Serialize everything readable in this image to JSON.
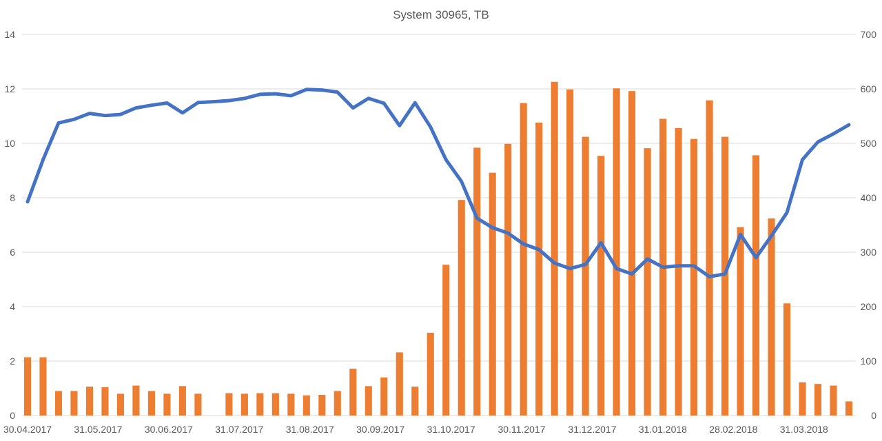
{
  "chart_data": {
    "type": "bar",
    "title": "System 30965, TB",
    "xlabel": "",
    "ylabel": "",
    "x_tick_labels": [
      "30.04.2017",
      "31.05.2017",
      "30.06.2017",
      "31.07.2017",
      "31.08.2017",
      "30.09.2017",
      "31.10.2017",
      "30.11.2017",
      "31.12.2017",
      "31.01.2018",
      "28.02.2018",
      "31.03.2018"
    ],
    "y_left": {
      "lim": [
        0,
        14
      ],
      "ticks": [
        0,
        2,
        4,
        6,
        8,
        10,
        12,
        14
      ]
    },
    "y_right": {
      "lim": [
        0,
        700
      ],
      "ticks": [
        0,
        100,
        200,
        300,
        400,
        500,
        600,
        700
      ]
    },
    "grid": true,
    "legend": "none",
    "series": [
      {
        "type": "bar",
        "axis": "right",
        "color": "#ED7D31",
        "values": [
          107,
          107,
          45,
          45,
          53,
          52,
          40,
          55,
          45,
          40,
          54,
          40,
          0,
          41,
          40,
          41,
          41,
          40,
          37,
          38,
          45,
          86,
          54,
          70,
          116,
          53,
          152,
          277,
          396,
          492,
          446,
          499,
          574,
          538,
          613,
          599,
          512,
          477,
          601,
          596,
          491,
          545,
          528,
          508,
          579,
          512,
          346,
          478,
          362,
          206,
          61,
          58,
          55,
          26
        ]
      },
      {
        "type": "line",
        "axis": "left",
        "color": "#4472C4",
        "values": [
          7.85,
          9.4,
          10.75,
          10.88,
          11.1,
          11.02,
          11.06,
          11.3,
          11.4,
          11.48,
          11.12,
          11.5,
          11.53,
          11.57,
          11.65,
          11.8,
          11.82,
          11.75,
          11.98,
          11.96,
          11.88,
          11.3,
          11.65,
          11.47,
          10.65,
          11.49,
          10.6,
          9.4,
          8.6,
          7.25,
          6.9,
          6.7,
          6.3,
          6.1,
          5.6,
          5.4,
          5.55,
          6.35,
          5.4,
          5.2,
          5.75,
          5.45,
          5.5,
          5.5,
          5.1,
          5.2,
          6.65,
          5.8,
          6.6,
          7.45,
          9.4,
          10.05,
          10.35,
          10.68
        ]
      }
    ]
  }
}
